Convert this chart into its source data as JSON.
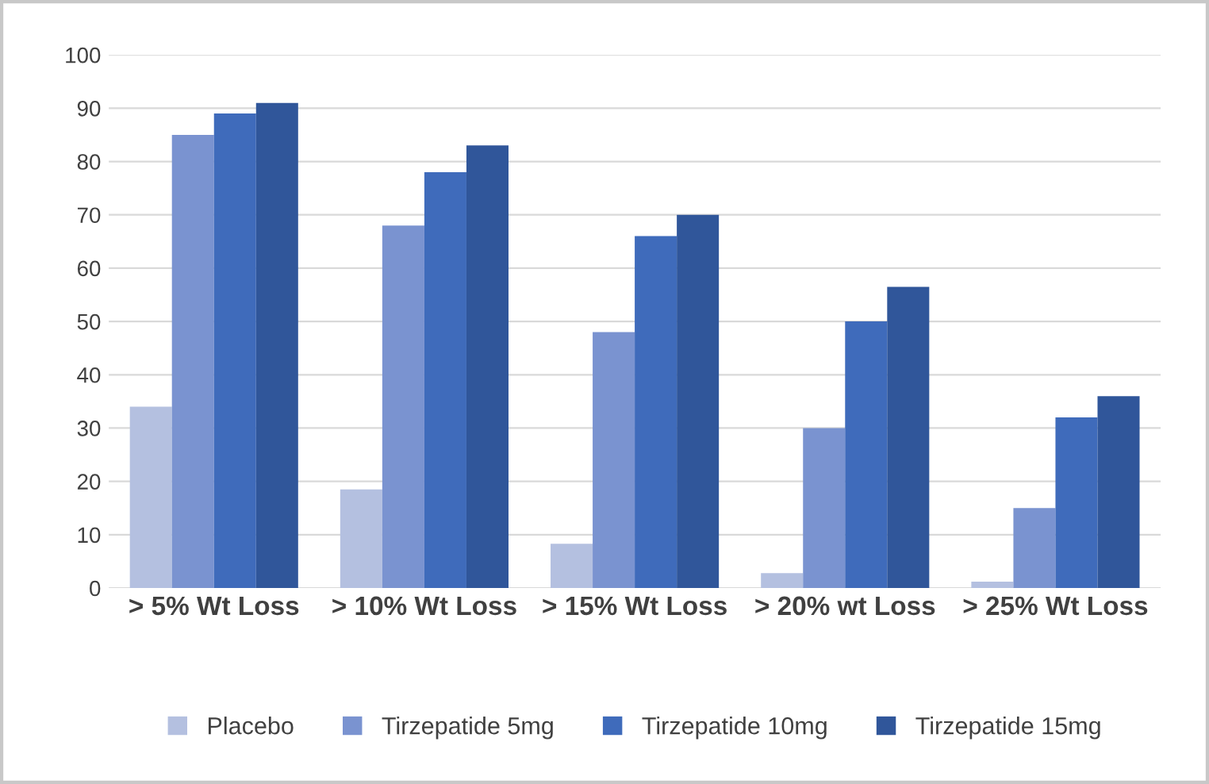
{
  "chart_data": {
    "type": "bar",
    "categories": [
      "> 5% Wt Loss",
      "> 10% Wt Loss",
      "> 15% Wt Loss",
      "> 20% wt Loss",
      "> 25% Wt Loss"
    ],
    "series": [
      {
        "name": "Placebo",
        "color": "#b4c0e0",
        "values": [
          34,
          18.5,
          8.3,
          2.8,
          1.2
        ]
      },
      {
        "name": "Tirzepatide 5mg",
        "color": "#7a93d0",
        "values": [
          85,
          68,
          48,
          30,
          15
        ]
      },
      {
        "name": "Tirzepatide 10mg",
        "color": "#3f6bbb",
        "values": [
          89,
          78,
          66,
          50,
          32
        ]
      },
      {
        "name": "Tirzepatide 15mg",
        "color": "#30569a",
        "values": [
          91,
          83,
          70,
          56.5,
          36
        ]
      }
    ],
    "ylim": [
      0,
      100
    ],
    "yticks": [
      0,
      10,
      20,
      30,
      40,
      50,
      60,
      70,
      80,
      90,
      100
    ],
    "grid": "y",
    "legend": "bottom"
  }
}
